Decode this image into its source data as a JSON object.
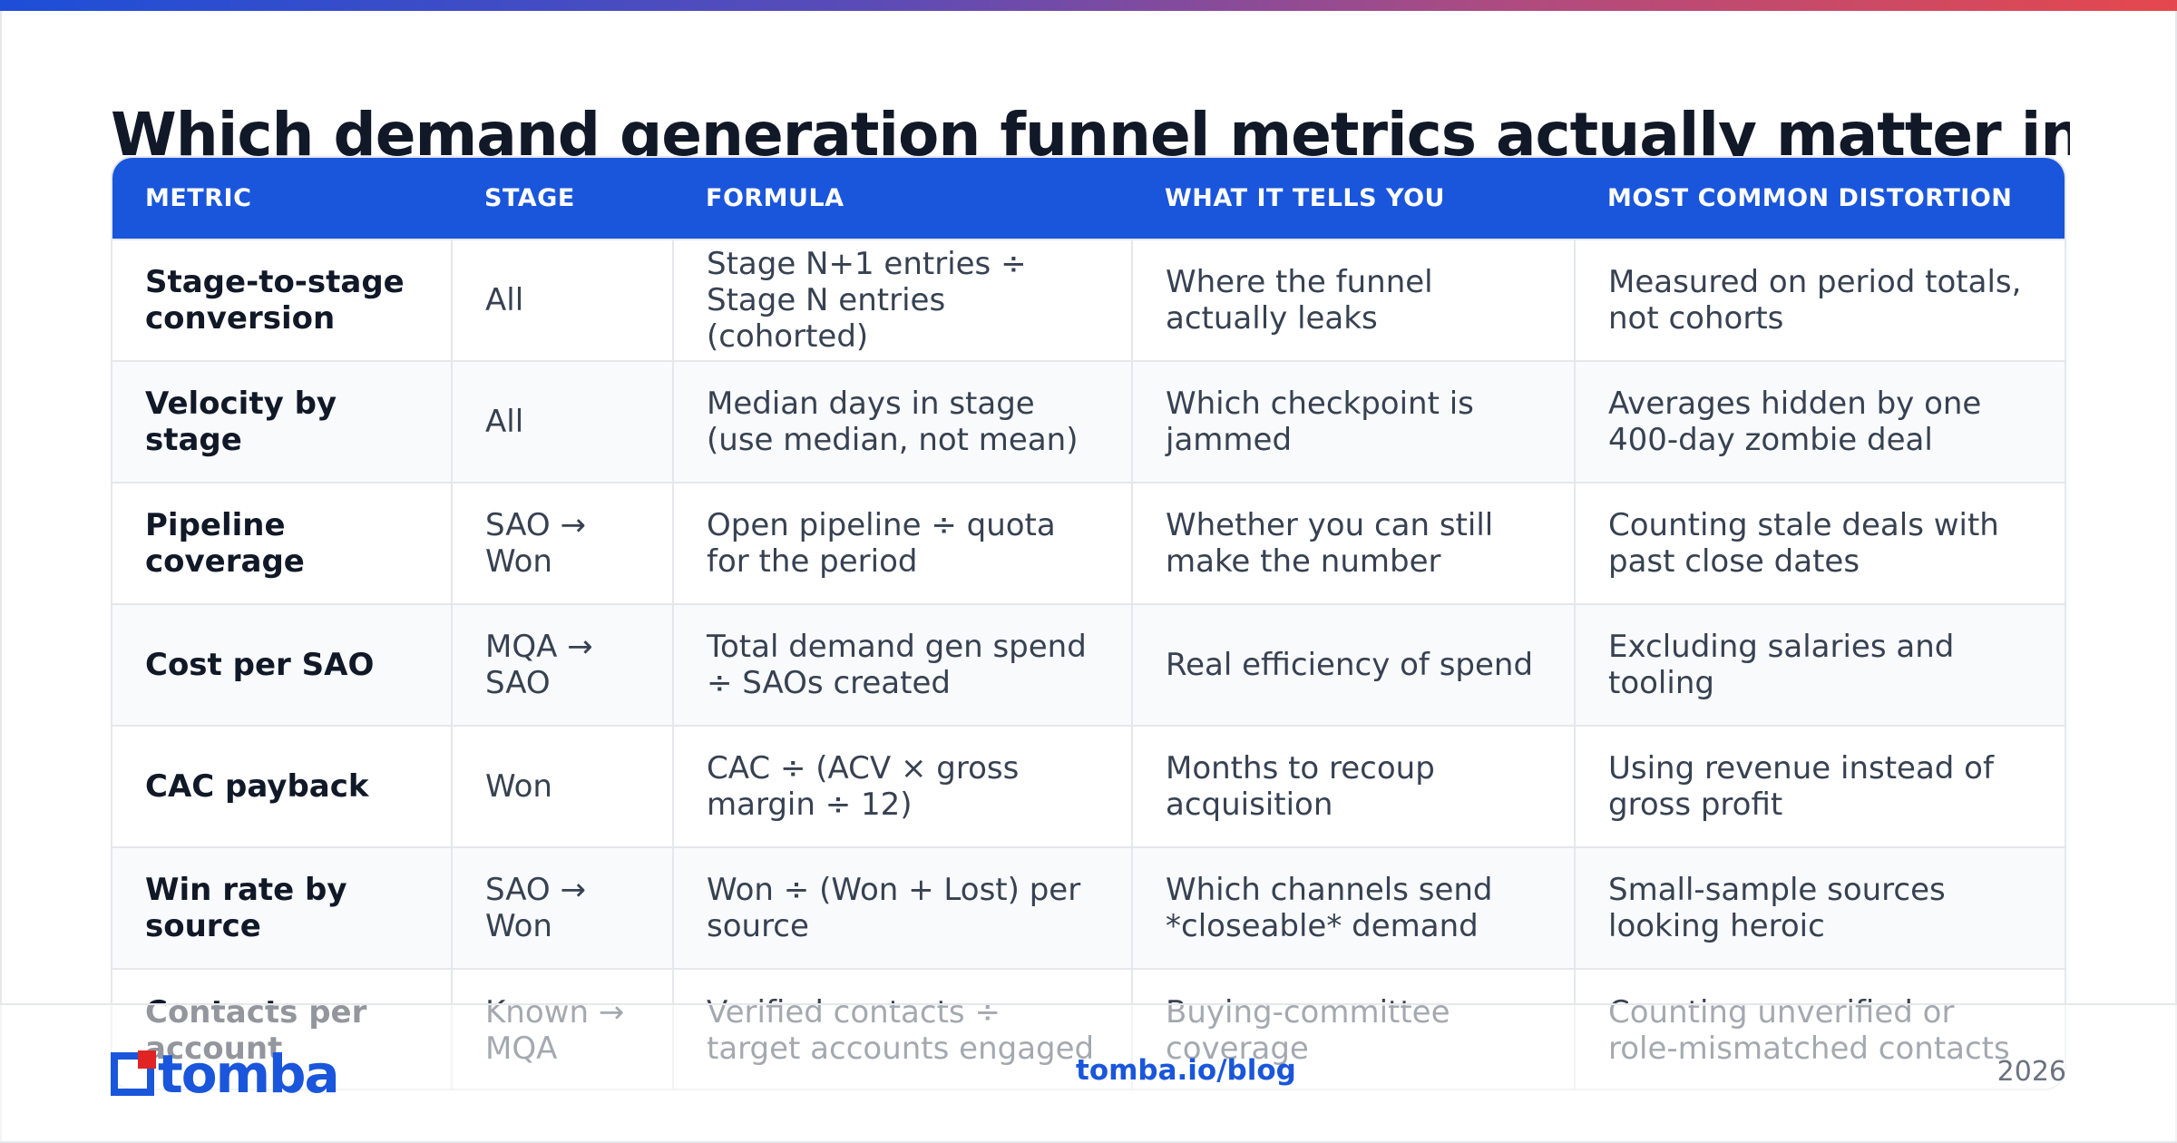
{
  "title": "Which demand generation funnel metrics actually matter in",
  "colors": {
    "accent": "#1a56db",
    "brand_red": "#e02424"
  },
  "table": {
    "headers": [
      "METRIC",
      "STAGE",
      "FORMULA",
      "WHAT IT TELLS YOU",
      "MOST COMMON DISTORTION"
    ],
    "rows": [
      [
        "Stage-to-stage conversion",
        "All",
        "Stage N+1 entries ÷ Stage N entries (cohorted)",
        "Where the funnel actually leaks",
        "Measured on period totals, not cohorts"
      ],
      [
        "Velocity by stage",
        "All",
        "Median days in stage (use median, not mean)",
        "Which checkpoint is jammed",
        "Averages hidden by one 400-day zombie deal"
      ],
      [
        "Pipeline coverage",
        "SAO → Won",
        "Open pipeline ÷ quota for the period",
        "Whether you can still make the number",
        "Counting stale deals with past close dates"
      ],
      [
        "Cost per SAO",
        "MQA → SAO",
        "Total demand gen spend ÷ SAOs created",
        "Real efficiency of spend",
        "Excluding salaries and tooling"
      ],
      [
        "CAC payback",
        "Won",
        "CAC ÷ (ACV × gross margin ÷ 12)",
        "Months to recoup acquisition",
        "Using revenue instead of gross profit"
      ],
      [
        "Win rate by source",
        "SAO → Won",
        "Won ÷ (Won + Lost) per source",
        "Which channels send *closeable* demand",
        "Small-sample sources looking heroic"
      ],
      [
        "Contacts per account",
        "Known → MQA",
        "Verified contacts ÷ target accounts engaged",
        "Buying-committee coverage",
        "Counting unverified or role-mismatched contacts"
      ]
    ]
  },
  "footer": {
    "logo_text": "tomba",
    "link": "tomba.io/blog",
    "year": "2026"
  }
}
